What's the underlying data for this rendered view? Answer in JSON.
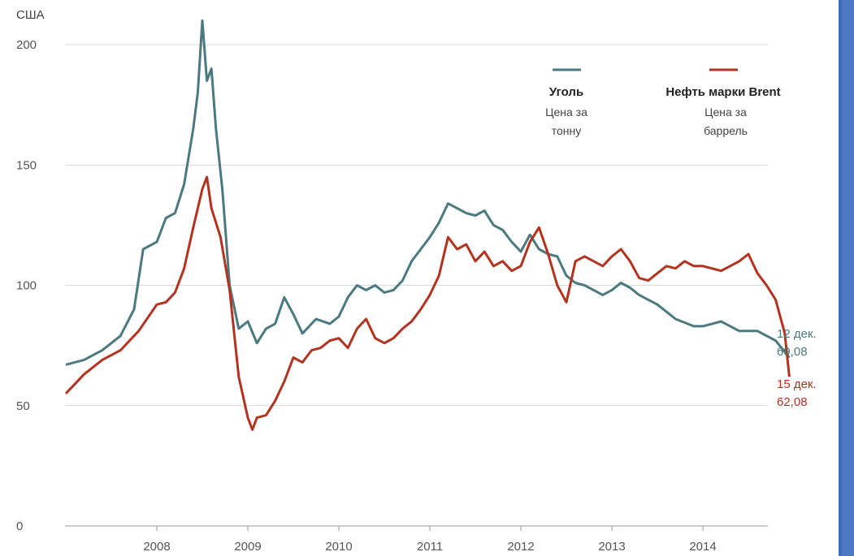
{
  "chart_data": {
    "type": "line",
    "unit_label": "США",
    "ylim": [
      0,
      210
    ],
    "y_ticks": [
      0,
      50,
      100,
      150,
      200
    ],
    "x_ticks": [
      "2008",
      "2009",
      "2010",
      "2011",
      "2012",
      "2013",
      "2014"
    ],
    "xlim": [
      2007.0,
      2014.95
    ],
    "grid": true,
    "legend_position": "top-right",
    "series": [
      {
        "name": "Уголь",
        "subtitle_line1": "Цена за",
        "subtitle_line2": "тонну",
        "color": "#4a7a80",
        "end_date": "12 дек.",
        "end_value": "69,08",
        "x": [
          2007.0,
          2007.2,
          2007.4,
          2007.6,
          2007.75,
          2007.85,
          2008.0,
          2008.1,
          2008.2,
          2008.3,
          2008.4,
          2008.45,
          2008.5,
          2008.55,
          2008.6,
          2008.65,
          2008.72,
          2008.8,
          2008.9,
          2009.0,
          2009.1,
          2009.2,
          2009.3,
          2009.4,
          2009.5,
          2009.6,
          2009.75,
          2009.9,
          2010.0,
          2010.1,
          2010.2,
          2010.3,
          2010.4,
          2010.5,
          2010.6,
          2010.7,
          2010.8,
          2010.9,
          2011.0,
          2011.1,
          2011.2,
          2011.3,
          2011.4,
          2011.5,
          2011.6,
          2011.7,
          2011.8,
          2011.9,
          2012.0,
          2012.1,
          2012.2,
          2012.3,
          2012.4,
          2012.5,
          2012.6,
          2012.7,
          2012.8,
          2012.9,
          2013.0,
          2013.1,
          2013.2,
          2013.3,
          2013.5,
          2013.7,
          2013.9,
          2014.0,
          2014.2,
          2014.4,
          2014.6,
          2014.8,
          2014.95
        ],
        "values": [
          67,
          69,
          73,
          79,
          90,
          115,
          118,
          128,
          130,
          142,
          165,
          180,
          210,
          185,
          190,
          165,
          140,
          100,
          82,
          85,
          76,
          82,
          84,
          95,
          88,
          80,
          86,
          84,
          87,
          95,
          100,
          98,
          100,
          97,
          98,
          102,
          110,
          115,
          120,
          126,
          134,
          132,
          130,
          129,
          131,
          125,
          123,
          118,
          114,
          121,
          115,
          113,
          112,
          104,
          101,
          100,
          98,
          96,
          98,
          101,
          99,
          96,
          92,
          86,
          83,
          83,
          85,
          81,
          81,
          77,
          70
        ]
      },
      {
        "name": "Нефть марки Brent",
        "subtitle_line1": "Цена за",
        "subtitle_line2": "баррель",
        "color": "#b5321f",
        "end_date": "15 дек.",
        "end_value": "62,08",
        "x": [
          2007.0,
          2007.2,
          2007.4,
          2007.6,
          2007.8,
          2008.0,
          2008.1,
          2008.2,
          2008.3,
          2008.4,
          2008.5,
          2008.55,
          2008.6,
          2008.7,
          2008.8,
          2008.9,
          2009.0,
          2009.05,
          2009.1,
          2009.2,
          2009.3,
          2009.4,
          2009.5,
          2009.6,
          2009.7,
          2009.8,
          2009.9,
          2010.0,
          2010.1,
          2010.2,
          2010.3,
          2010.4,
          2010.5,
          2010.6,
          2010.7,
          2010.8,
          2010.9,
          2011.0,
          2011.1,
          2011.2,
          2011.3,
          2011.4,
          2011.5,
          2011.6,
          2011.7,
          2011.8,
          2011.9,
          2012.0,
          2012.1,
          2012.2,
          2012.3,
          2012.4,
          2012.5,
          2012.6,
          2012.7,
          2012.8,
          2012.9,
          2013.0,
          2013.1,
          2013.2,
          2013.3,
          2013.4,
          2013.5,
          2013.6,
          2013.7,
          2013.8,
          2013.9,
          2014.0,
          2014.1,
          2014.2,
          2014.3,
          2014.4,
          2014.5,
          2014.6,
          2014.7,
          2014.8,
          2014.9,
          2014.95
        ],
        "values": [
          55,
          63,
          69,
          73,
          81,
          92,
          93,
          97,
          107,
          124,
          140,
          145,
          132,
          120,
          98,
          62,
          45,
          40,
          45,
          46,
          52,
          60,
          70,
          68,
          73,
          74,
          77,
          78,
          74,
          82,
          86,
          78,
          76,
          78,
          82,
          85,
          90,
          96,
          104,
          120,
          115,
          117,
          110,
          114,
          108,
          110,
          106,
          108,
          118,
          124,
          113,
          100,
          93,
          110,
          112,
          110,
          108,
          112,
          115,
          110,
          103,
          102,
          105,
          108,
          107,
          110,
          108,
          108,
          107,
          106,
          108,
          110,
          113,
          105,
          100,
          94,
          80,
          62
        ]
      }
    ]
  }
}
